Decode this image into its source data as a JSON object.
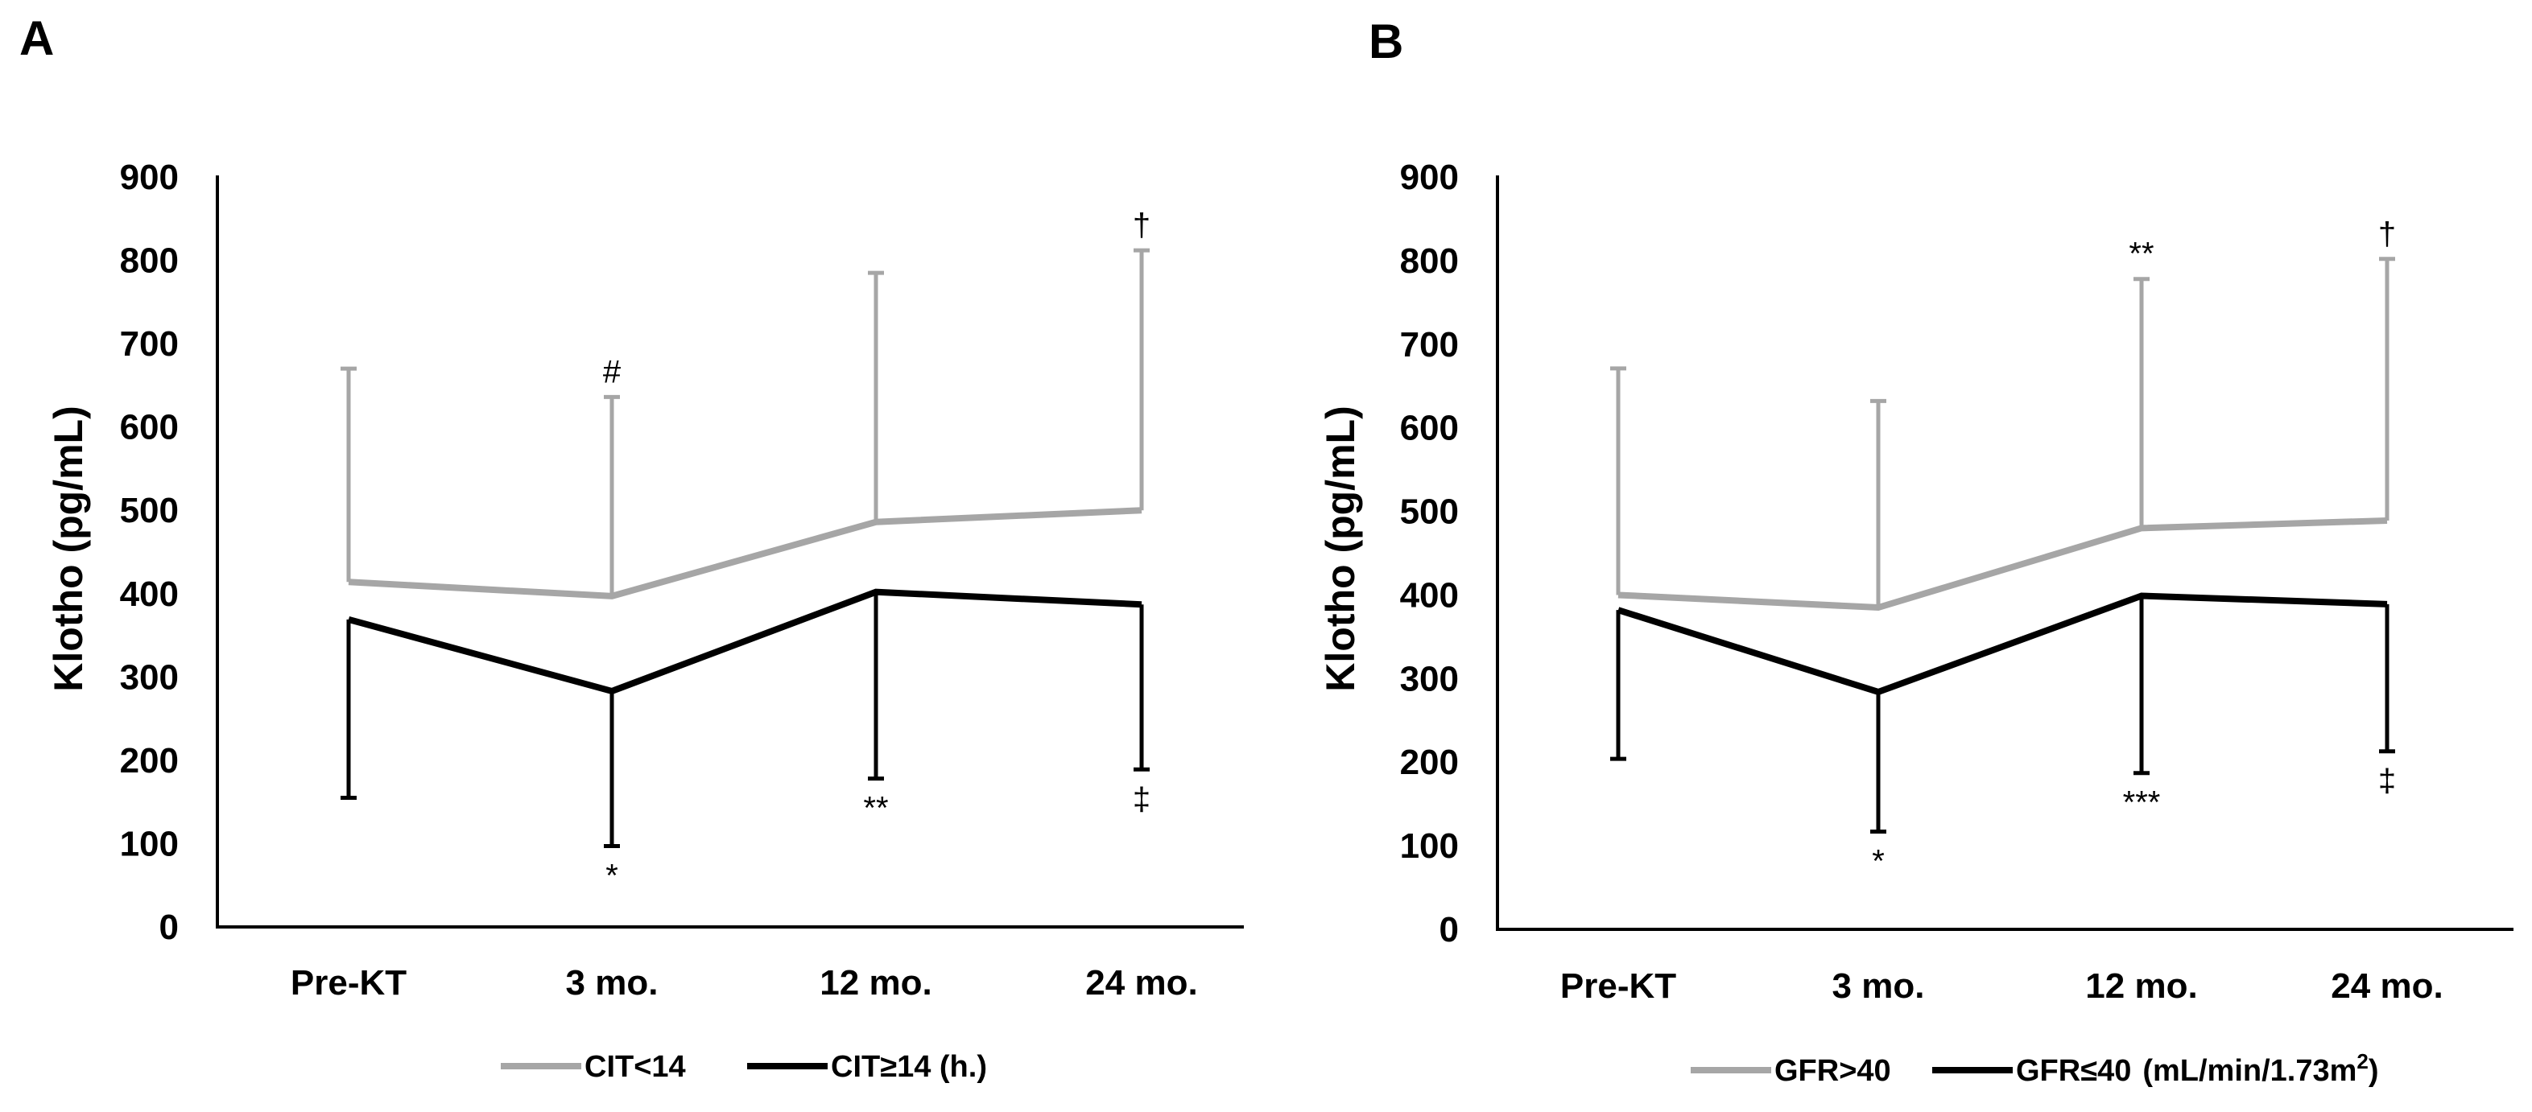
{
  "chart_data": [
    {
      "panel": "A",
      "type": "line",
      "ylabel": "Klotho (pg/mL)",
      "xlabel": "",
      "ylim": [
        0,
        900
      ],
      "yticks": [
        "0",
        "100",
        "200",
        "300",
        "400",
        "500",
        "600",
        "700",
        "800",
        "900"
      ],
      "categories": [
        "Pre-KT",
        "3 mo.",
        "12 mo.",
        "24 mo."
      ],
      "series": [
        {
          "name": "CIT<14",
          "color": "#a6a6a6",
          "values": [
            414,
            397,
            486,
            500
          ],
          "error_direction": "up",
          "error_bound": [
            670,
            636,
            785,
            812
          ],
          "annotations": [
            "",
            "#",
            "",
            "†"
          ]
        },
        {
          "name": "CIT≥14 (h.)",
          "color": "#000000",
          "values": [
            369,
            283,
            402,
            387
          ],
          "error_direction": "down",
          "error_bound": [
            155,
            97,
            178,
            189
          ],
          "annotations": [
            "",
            "*",
            "**",
            "‡"
          ]
        }
      ]
    },
    {
      "panel": "B",
      "type": "line",
      "ylabel": "Klotho (pg/mL)",
      "xlabel": "",
      "ylim": [
        0,
        900
      ],
      "yticks": [
        "0",
        "100",
        "200",
        "300",
        "400",
        "500",
        "600",
        "700",
        "800",
        "900"
      ],
      "categories": [
        "Pre-KT",
        "3 mo.",
        "12 mo.",
        "24 mo."
      ],
      "series": [
        {
          "name": "GFR>40",
          "color": "#a6a6a6",
          "values": [
            400,
            385,
            480,
            489
          ],
          "error_direction": "up",
          "error_bound": [
            671,
            632,
            778,
            802
          ],
          "annotations": [
            "",
            "",
            "**",
            "†"
          ]
        },
        {
          "name": "GFR≤40",
          "name_unit": "(mL/min/1.73m",
          "name_unit_sup": "2",
          "name_unit_close": ")",
          "color": "#000000",
          "values": [
            382,
            284,
            399,
            389
          ],
          "error_direction": "down",
          "error_bound": [
            204,
            117,
            187,
            213
          ],
          "annotations": [
            "",
            "*",
            "***",
            "‡"
          ]
        }
      ]
    }
  ]
}
